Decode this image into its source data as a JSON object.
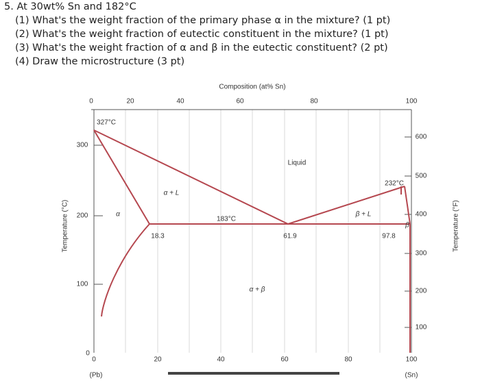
{
  "question": {
    "title": "5. At 30wt% Sn and 182°C",
    "items": [
      "(1) What's the weight fraction of the primary phase α in the mixture? (1 pt)",
      "(2) What's the weight fraction of eutectic constituent in the mixture? (1 pt)",
      "(3) What's the weight fraction of α and β in the eutectic constituent? (2 pt)",
      "(4) Draw the microstructure (3 pt)"
    ]
  },
  "diagram": {
    "top_axis_title": "Composition (at% Sn)",
    "top_ticks": [
      "0",
      "20",
      "40",
      "60",
      "80",
      "100"
    ],
    "bottom_ticks": [
      "0",
      "20",
      "40",
      "60",
      "80",
      "100"
    ],
    "left_axis_title": "Temperature (°C)",
    "left_ticks": [
      "300",
      "200",
      "100",
      "0"
    ],
    "right_axis_title": "Temperature (°F)",
    "right_ticks": [
      "600",
      "500",
      "400",
      "300",
      "200",
      "100"
    ],
    "bottom_left": "(Pb)",
    "bottom_right": "(Sn)",
    "regions": {
      "liquid": "Liquid",
      "alpha_liquid": "α + L",
      "beta_liquid": "β + L",
      "alpha_beta": "α + β",
      "alpha": "α",
      "beta": "β"
    },
    "points": {
      "pb_melt": "327°C",
      "sn_melt": "232°C",
      "eutectic_temp": "183°C",
      "alpha_max": "18.3",
      "eutectic_comp": "61.9",
      "beta_max": "97.8"
    }
  }
}
